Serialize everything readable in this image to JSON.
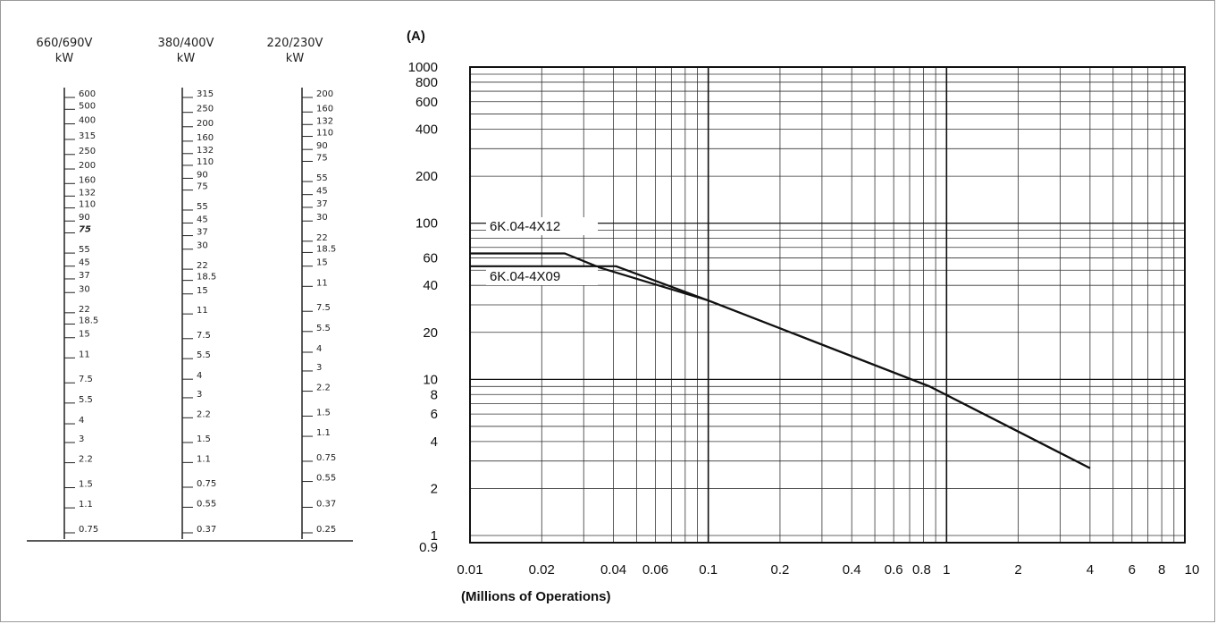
{
  "scales": [
    {
      "voltage": "660/690V",
      "unit": "kW",
      "ticks": [
        "600",
        "500",
        "400",
        "315",
        "250",
        "200",
        "160",
        "132",
        "110",
        "90",
        "75",
        "55",
        "45",
        "37",
        "30",
        "22",
        "18.5",
        "15",
        "11",
        "7.5",
        "5.5",
        "4",
        "3",
        "2.2",
        "1.5",
        "1.1",
        "0.75"
      ],
      "bold": [
        "75"
      ]
    },
    {
      "voltage": "380/400V",
      "unit": "kW",
      "ticks": [
        "315",
        "250",
        "200",
        "160",
        "132",
        "110",
        "90",
        "75",
        "55",
        "45",
        "37",
        "30",
        "22",
        "18.5",
        "15",
        "11",
        "7.5",
        "5.5",
        "4",
        "3",
        "2.2",
        "1.5",
        "1.1",
        "0.75",
        "0.55",
        "0.37"
      ],
      "bold": []
    },
    {
      "voltage": "220/230V",
      "unit": "kW",
      "ticks": [
        "200",
        "160",
        "132",
        "110",
        "90",
        "75",
        "55",
        "45",
        "37",
        "30",
        "22",
        "18.5",
        "15",
        "11",
        "7.5",
        "5.5",
        "4",
        "3",
        "2.2",
        "1.5",
        "1.1",
        "0.75",
        "0.55",
        "0.37",
        "0.25"
      ],
      "bold": []
    }
  ],
  "chart_data": {
    "type": "line",
    "title": "",
    "ylabel": "(A)",
    "xlabel": "(Millions of Operations)",
    "xscale": "log",
    "yscale": "log",
    "xlim": [
      0.01,
      10
    ],
    "ylim": [
      0.9,
      1000
    ],
    "x_ticks": [
      "0.01",
      "0.02",
      "0.04",
      "0.06",
      "0.1",
      "0.2",
      "0.4",
      "0.6",
      "0.8",
      "1",
      "2",
      "4",
      "6",
      "8",
      "10"
    ],
    "x_tick_values": [
      0.01,
      0.02,
      0.04,
      0.06,
      0.1,
      0.2,
      0.4,
      0.6,
      0.8,
      1,
      2,
      4,
      6,
      8,
      10
    ],
    "y_ticks": [
      "1000",
      "800",
      "600",
      "400",
      "200",
      "100",
      "60",
      "40",
      "20",
      "10",
      "8",
      "6",
      "4",
      "2",
      "1",
      "0.9"
    ],
    "y_tick_values": [
      1000,
      800,
      600,
      400,
      200,
      100,
      60,
      40,
      20,
      10,
      8,
      6,
      4,
      2,
      1,
      0.9
    ],
    "grid": true,
    "series": [
      {
        "name": "6K.04-4X12",
        "points": [
          [
            0.01,
            64
          ],
          [
            0.025,
            64
          ],
          [
            0.035,
            52
          ],
          [
            0.1,
            32
          ],
          [
            0.85,
            9
          ],
          [
            4,
            2.7
          ]
        ]
      },
      {
        "name": "6K.04-4X09",
        "points": [
          [
            0.01,
            53
          ],
          [
            0.041,
            53
          ],
          [
            0.1,
            32
          ],
          [
            0.85,
            9
          ],
          [
            4,
            2.7
          ]
        ]
      }
    ],
    "annotations": [
      "6K.04-4X12",
      "6K.04-4X09"
    ]
  }
}
